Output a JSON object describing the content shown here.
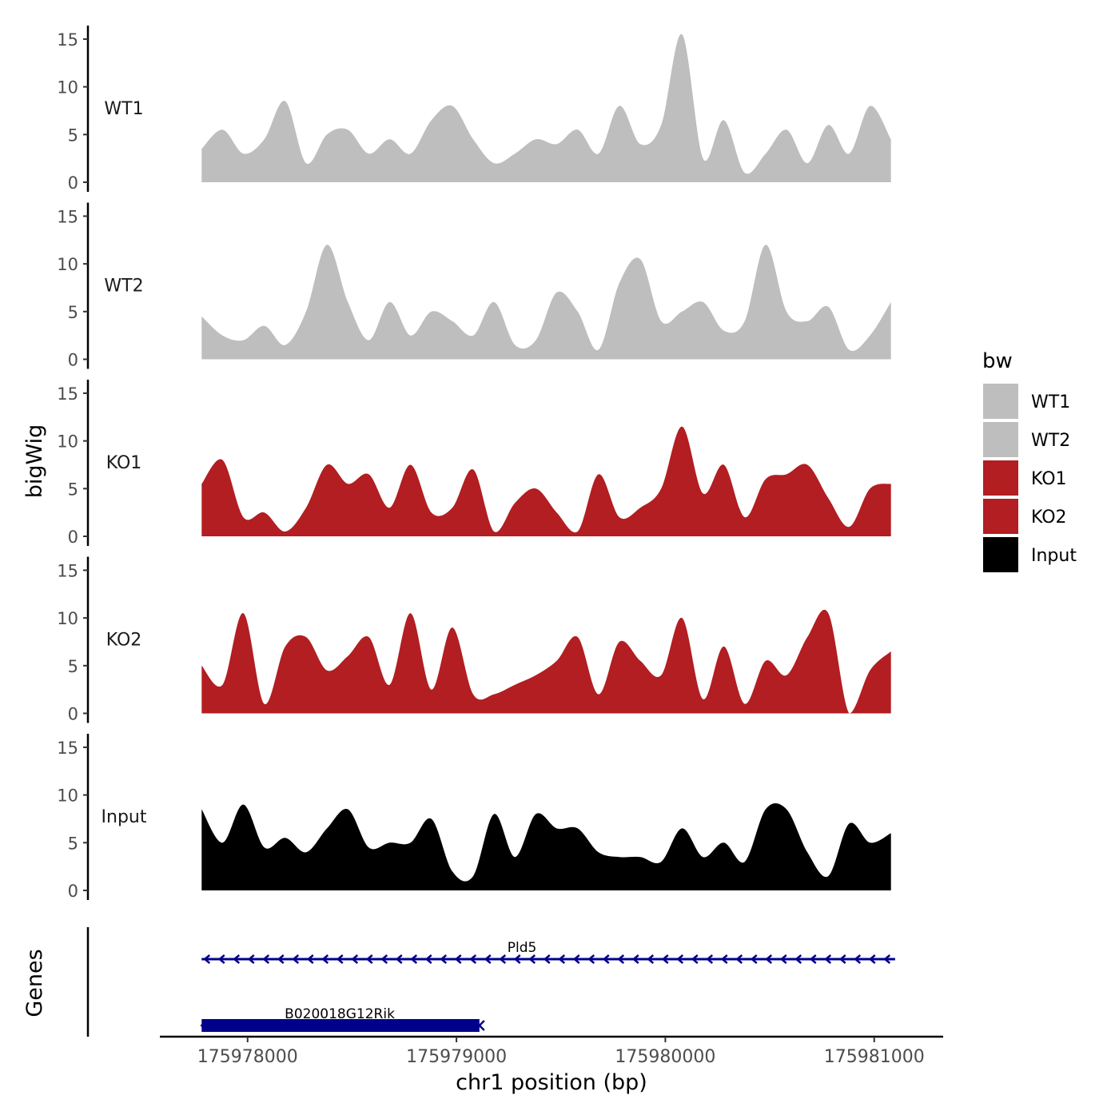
{
  "chart_data": {
    "type": "area",
    "ylabel": "bigWig",
    "xlabel": "chr1 position (bp)",
    "genes_label": "Genes",
    "legend": {
      "title": "bw",
      "position": "right",
      "entries": [
        {
          "label": "WT1",
          "color": "#bebebe"
        },
        {
          "label": "WT2",
          "color": "#bebebe"
        },
        {
          "label": "KO1",
          "color": "#b21e21"
        },
        {
          "label": "KO2",
          "color": "#b21e21"
        },
        {
          "label": "Input",
          "color": "#000000"
        }
      ]
    },
    "ylim": [
      0,
      16
    ],
    "yticks": [
      0,
      5,
      10,
      15
    ],
    "xlim": [
      175977580,
      175981330
    ],
    "xticks": [
      175978000,
      175979000,
      175980000,
      175981000
    ],
    "x": [
      175977780,
      175977880,
      175977980,
      175978080,
      175978180,
      175978280,
      175978380,
      175978480,
      175978580,
      175978680,
      175978780,
      175978880,
      175978980,
      175979080,
      175979180,
      175979280,
      175979380,
      175979480,
      175979580,
      175979680,
      175979780,
      175979880,
      175979980,
      175980080,
      175980180,
      175980280,
      175980380,
      175980480,
      175980580,
      175980680,
      175980780,
      175980880,
      175980980,
      175981080
    ],
    "series": [
      {
        "name": "WT1",
        "color": "#bebebe",
        "values": [
          3.5,
          5.5,
          3.0,
          4.5,
          8.5,
          2.0,
          5.0,
          5.5,
          3.0,
          4.5,
          3.0,
          6.5,
          8.0,
          4.5,
          2.0,
          3.0,
          4.5,
          4.0,
          5.5,
          3.0,
          8.0,
          4.0,
          6.0,
          15.5,
          2.5,
          6.5,
          1.0,
          3.0,
          5.5,
          2.0,
          6.0,
          3.0,
          8.0,
          4.5
        ]
      },
      {
        "name": "WT2",
        "color": "#bebebe",
        "values": [
          4.5,
          2.5,
          2.0,
          3.5,
          1.5,
          5.0,
          12.0,
          6.0,
          2.0,
          6.0,
          2.5,
          5.0,
          4.0,
          2.5,
          6.0,
          1.5,
          2.0,
          7.0,
          5.0,
          1.0,
          8.0,
          10.5,
          4.0,
          5.0,
          6.0,
          3.0,
          4.0,
          12.0,
          5.0,
          4.0,
          5.5,
          1.0,
          2.5,
          6.0
        ]
      },
      {
        "name": "KO1",
        "color": "#b21e21",
        "values": [
          5.5,
          8.0,
          2.0,
          2.5,
          0.5,
          3.0,
          7.5,
          5.5,
          6.5,
          3.0,
          7.5,
          2.5,
          3.0,
          7.0,
          0.5,
          3.5,
          5.0,
          2.5,
          0.5,
          6.5,
          2.0,
          3.0,
          5.0,
          11.5,
          4.5,
          7.5,
          2.0,
          6.0,
          6.5,
          7.5,
          4.0,
          1.0,
          5.0,
          5.5
        ]
      },
      {
        "name": "KO2",
        "color": "#b21e21",
        "values": [
          5.0,
          3.0,
          10.5,
          1.0,
          7.0,
          8.0,
          4.5,
          6.0,
          8.0,
          3.0,
          10.5,
          2.5,
          9.0,
          2.0,
          2.0,
          3.0,
          4.0,
          5.5,
          8.0,
          2.0,
          7.5,
          5.5,
          4.0,
          10.0,
          1.5,
          7.0,
          1.0,
          5.5,
          4.0,
          8.0,
          10.5,
          0.0,
          4.5,
          6.5
        ]
      },
      {
        "name": "Input",
        "color": "#000000",
        "values": [
          8.5,
          5.0,
          9.0,
          4.5,
          5.5,
          4.0,
          6.5,
          8.5,
          4.5,
          5.0,
          5.0,
          7.5,
          2.0,
          1.5,
          8.0,
          3.5,
          8.0,
          6.5,
          6.5,
          4.0,
          3.5,
          3.5,
          3.0,
          6.5,
          3.5,
          5.0,
          3.0,
          8.5,
          8.5,
          4.0,
          1.5,
          7.0,
          5.0,
          6.0
        ]
      }
    ],
    "genes": [
      {
        "name": "Pld5",
        "start": 175977780,
        "end": 175981100,
        "strand": "-",
        "color": "#00008b",
        "style": "thin"
      },
      {
        "name": "B020018G12Rik",
        "start": 175977780,
        "end": 175979110,
        "strand": "-",
        "color": "#00008b",
        "style": "thick"
      }
    ]
  }
}
